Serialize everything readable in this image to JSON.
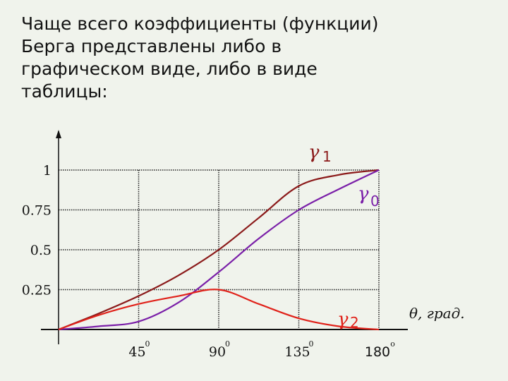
{
  "slide": {
    "lines": [
      "Чаще всего коэффициенты (функции)",
      "Берга представлены либо в",
      "графическом виде, либо в виде",
      "таблицы:"
    ]
  },
  "chart_data": {
    "type": "line",
    "title": "",
    "xlabel": "θ, град.",
    "ylabel": "",
    "xlim": [
      0,
      180
    ],
    "ylim": [
      0,
      1
    ],
    "grid": true,
    "x_ticks": [
      {
        "value": 45,
        "label": "45",
        "sup": "0"
      },
      {
        "value": 90,
        "label": "90",
        "sup": "0"
      },
      {
        "value": 135,
        "label": "135",
        "sup": "0"
      },
      {
        "value": 180,
        "label": "180",
        "sup": "o"
      }
    ],
    "y_ticks": [
      {
        "value": 0.25,
        "label": "0.25"
      },
      {
        "value": 0.5,
        "label": "0.5"
      },
      {
        "value": 0.75,
        "label": "0.75"
      },
      {
        "value": 1,
        "label": "1"
      }
    ],
    "series": [
      {
        "name": "γ1",
        "symbol": "γ",
        "sub": "1",
        "color": "#8b1a1a",
        "x": [
          0,
          22.5,
          45,
          67.5,
          90,
          112.5,
          135,
          157.5,
          180
        ],
        "y": [
          0,
          0.1,
          0.21,
          0.34,
          0.5,
          0.7,
          0.9,
          0.97,
          1.0
        ]
      },
      {
        "name": "γ0",
        "symbol": "γ",
        "sub": "0",
        "color": "#7a1fa8",
        "x": [
          0,
          22.5,
          45,
          67.5,
          90,
          112.5,
          135,
          157.5,
          180
        ],
        "y": [
          0,
          0.02,
          0.05,
          0.17,
          0.36,
          0.57,
          0.75,
          0.88,
          1.0
        ]
      },
      {
        "name": "γ2",
        "symbol": "γ",
        "sub": "2",
        "color": "#e0221a",
        "x": [
          0,
          22.5,
          45,
          67.5,
          90,
          112.5,
          135,
          157.5,
          180
        ],
        "y": [
          0,
          0.09,
          0.16,
          0.21,
          0.25,
          0.16,
          0.07,
          0.02,
          0
        ]
      }
    ]
  }
}
